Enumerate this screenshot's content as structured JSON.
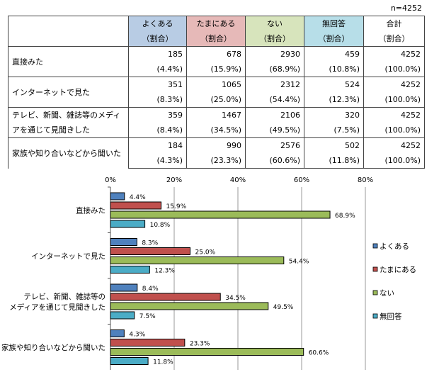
{
  "n_label": "n=4252",
  "table": {
    "headers": [
      {
        "label": "よくある",
        "sub": "（割合）",
        "color": "#b8cce4"
      },
      {
        "label": "たまにある",
        "sub": "（割合）",
        "color": "#e6b9b8"
      },
      {
        "label": "ない",
        "sub": "（割合）",
        "color": "#d7e4bc"
      },
      {
        "label": "無回答",
        "sub": "（割合）",
        "color": "#b7dee8"
      },
      {
        "label": "合計",
        "sub": "（割合）",
        "color": "#ffffff"
      }
    ],
    "rows": [
      {
        "label": "直接みた",
        "counts": [
          "185",
          "678",
          "2930",
          "459",
          "4252"
        ],
        "pcts": [
          "(4.4%)",
          "(15.9%)",
          "(68.9%)",
          "(10.8%)",
          "(100.0%)"
        ]
      },
      {
        "label": "インターネットで見た",
        "counts": [
          "351",
          "1065",
          "2312",
          "524",
          "4252"
        ],
        "pcts": [
          "(8.3%)",
          "(25.0%)",
          "(54.4%)",
          "(12.3%)",
          "(100.0%)"
        ]
      },
      {
        "label": "テレビ、新聞、雑誌等のメディアを通じて見聞きした",
        "counts": [
          "359",
          "1467",
          "2106",
          "320",
          "4252"
        ],
        "pcts": [
          "(8.4%)",
          "(34.5%)",
          "(49.5%)",
          "(7.5%)",
          "(100.0%)"
        ]
      },
      {
        "label": "家族や知り合いなどから聞いた",
        "counts": [
          "184",
          "990",
          "2576",
          "502",
          "4252"
        ],
        "pcts": [
          "(4.3%)",
          "(23.3%)",
          "(60.6%)",
          "(11.8%)",
          "(100.0%)"
        ]
      }
    ]
  },
  "chart_data": {
    "type": "bar",
    "orientation": "horizontal",
    "categories": [
      "直接みた",
      "インターネットで見た",
      "テレビ、新聞、雑誌等の\nメディアを通じて見聞きした",
      "家族や知り合いなどから聞いた"
    ],
    "series": [
      {
        "name": "よくある",
        "color": "#4f81bd",
        "values": [
          4.4,
          8.3,
          8.4,
          4.3
        ]
      },
      {
        "name": "たまにある",
        "color": "#c0504d",
        "values": [
          15.9,
          25.0,
          34.5,
          23.3
        ]
      },
      {
        "name": "ない",
        "color": "#9bbb59",
        "values": [
          68.9,
          54.4,
          49.5,
          60.6
        ]
      },
      {
        "name": "無回答",
        "color": "#4bacc6",
        "values": [
          10.8,
          12.3,
          7.5,
          11.8
        ]
      }
    ],
    "xlim": [
      0,
      80
    ],
    "xticks": [
      "0%",
      "20%",
      "40%",
      "60%",
      "80%"
    ],
    "grid": true,
    "legend_position": "right"
  }
}
